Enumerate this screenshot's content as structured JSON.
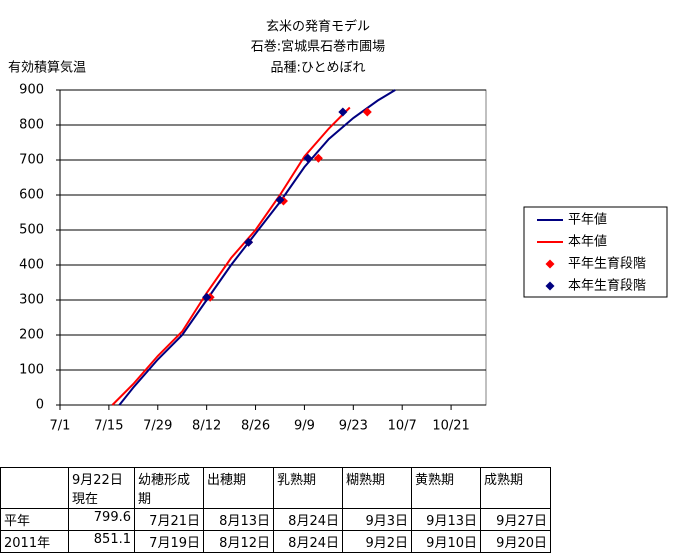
{
  "chart_data": {
    "type": "line",
    "title": "玄米の発育モデル",
    "subtitle": "石巻:宮城県石巻市圃場",
    "subtitle2": "品種:ひとめぼれ",
    "ylabel": "有効積算気温",
    "xlim": [
      "7/1",
      "10/31"
    ],
    "xticks": [
      "7/1",
      "7/15",
      "7/29",
      "8/12",
      "8/26",
      "9/9",
      "9/23",
      "10/7",
      "10/21"
    ],
    "ylim": [
      0,
      900
    ],
    "yticks": [
      0,
      100,
      200,
      300,
      400,
      500,
      600,
      700,
      800,
      900
    ],
    "grid": true,
    "legend": "right",
    "series": [
      {
        "name": "平年値",
        "color": "#000080",
        "style": "line",
        "x": [
          "7/18",
          "7/22",
          "7/29",
          "8/5",
          "8/12",
          "8/19",
          "8/26",
          "9/2",
          "9/9",
          "9/16",
          "9/23",
          "9/30",
          "10/5"
        ],
        "values": [
          0,
          50,
          130,
          200,
          300,
          400,
          490,
          580,
          680,
          760,
          820,
          870,
          900
        ]
      },
      {
        "name": "本年値",
        "color": "#ff0000",
        "style": "line",
        "x": [
          "7/16",
          "7/22",
          "7/29",
          "8/5",
          "8/12",
          "8/19",
          "8/26",
          "9/2",
          "9/9",
          "9/16",
          "9/22"
        ],
        "values": [
          0,
          60,
          140,
          210,
          320,
          420,
          500,
          600,
          710,
          790,
          850
        ]
      },
      {
        "name": "平年生育段階",
        "color": "#ff0000",
        "style": "marker",
        "x": [
          "8/13",
          "8/24",
          "9/3",
          "9/13",
          "9/27"
        ],
        "values": [
          308,
          465,
          583,
          705,
          837
        ]
      },
      {
        "name": "本年生育段階",
        "color": "#000080",
        "style": "marker",
        "x": [
          "8/12",
          "8/24",
          "9/2",
          "9/10",
          "9/20"
        ],
        "values": [
          308,
          465,
          586,
          705,
          837
        ]
      }
    ]
  },
  "table": {
    "header": [
      "",
      "9月22日\n現在",
      "幼穂形成期",
      "出穂期",
      "乳熟期",
      "糊熟期",
      "黄熟期",
      "成熟期"
    ],
    "rows": [
      [
        "平年",
        799.6,
        "7月21日",
        "8月13日",
        "8月24日",
        "9月3日",
        "9月13日",
        "9月27日"
      ],
      [
        "2011年",
        851.1,
        "7月19日",
        "8月12日",
        "8月24日",
        "9月2日",
        "9月10日",
        "9月20日"
      ]
    ]
  }
}
